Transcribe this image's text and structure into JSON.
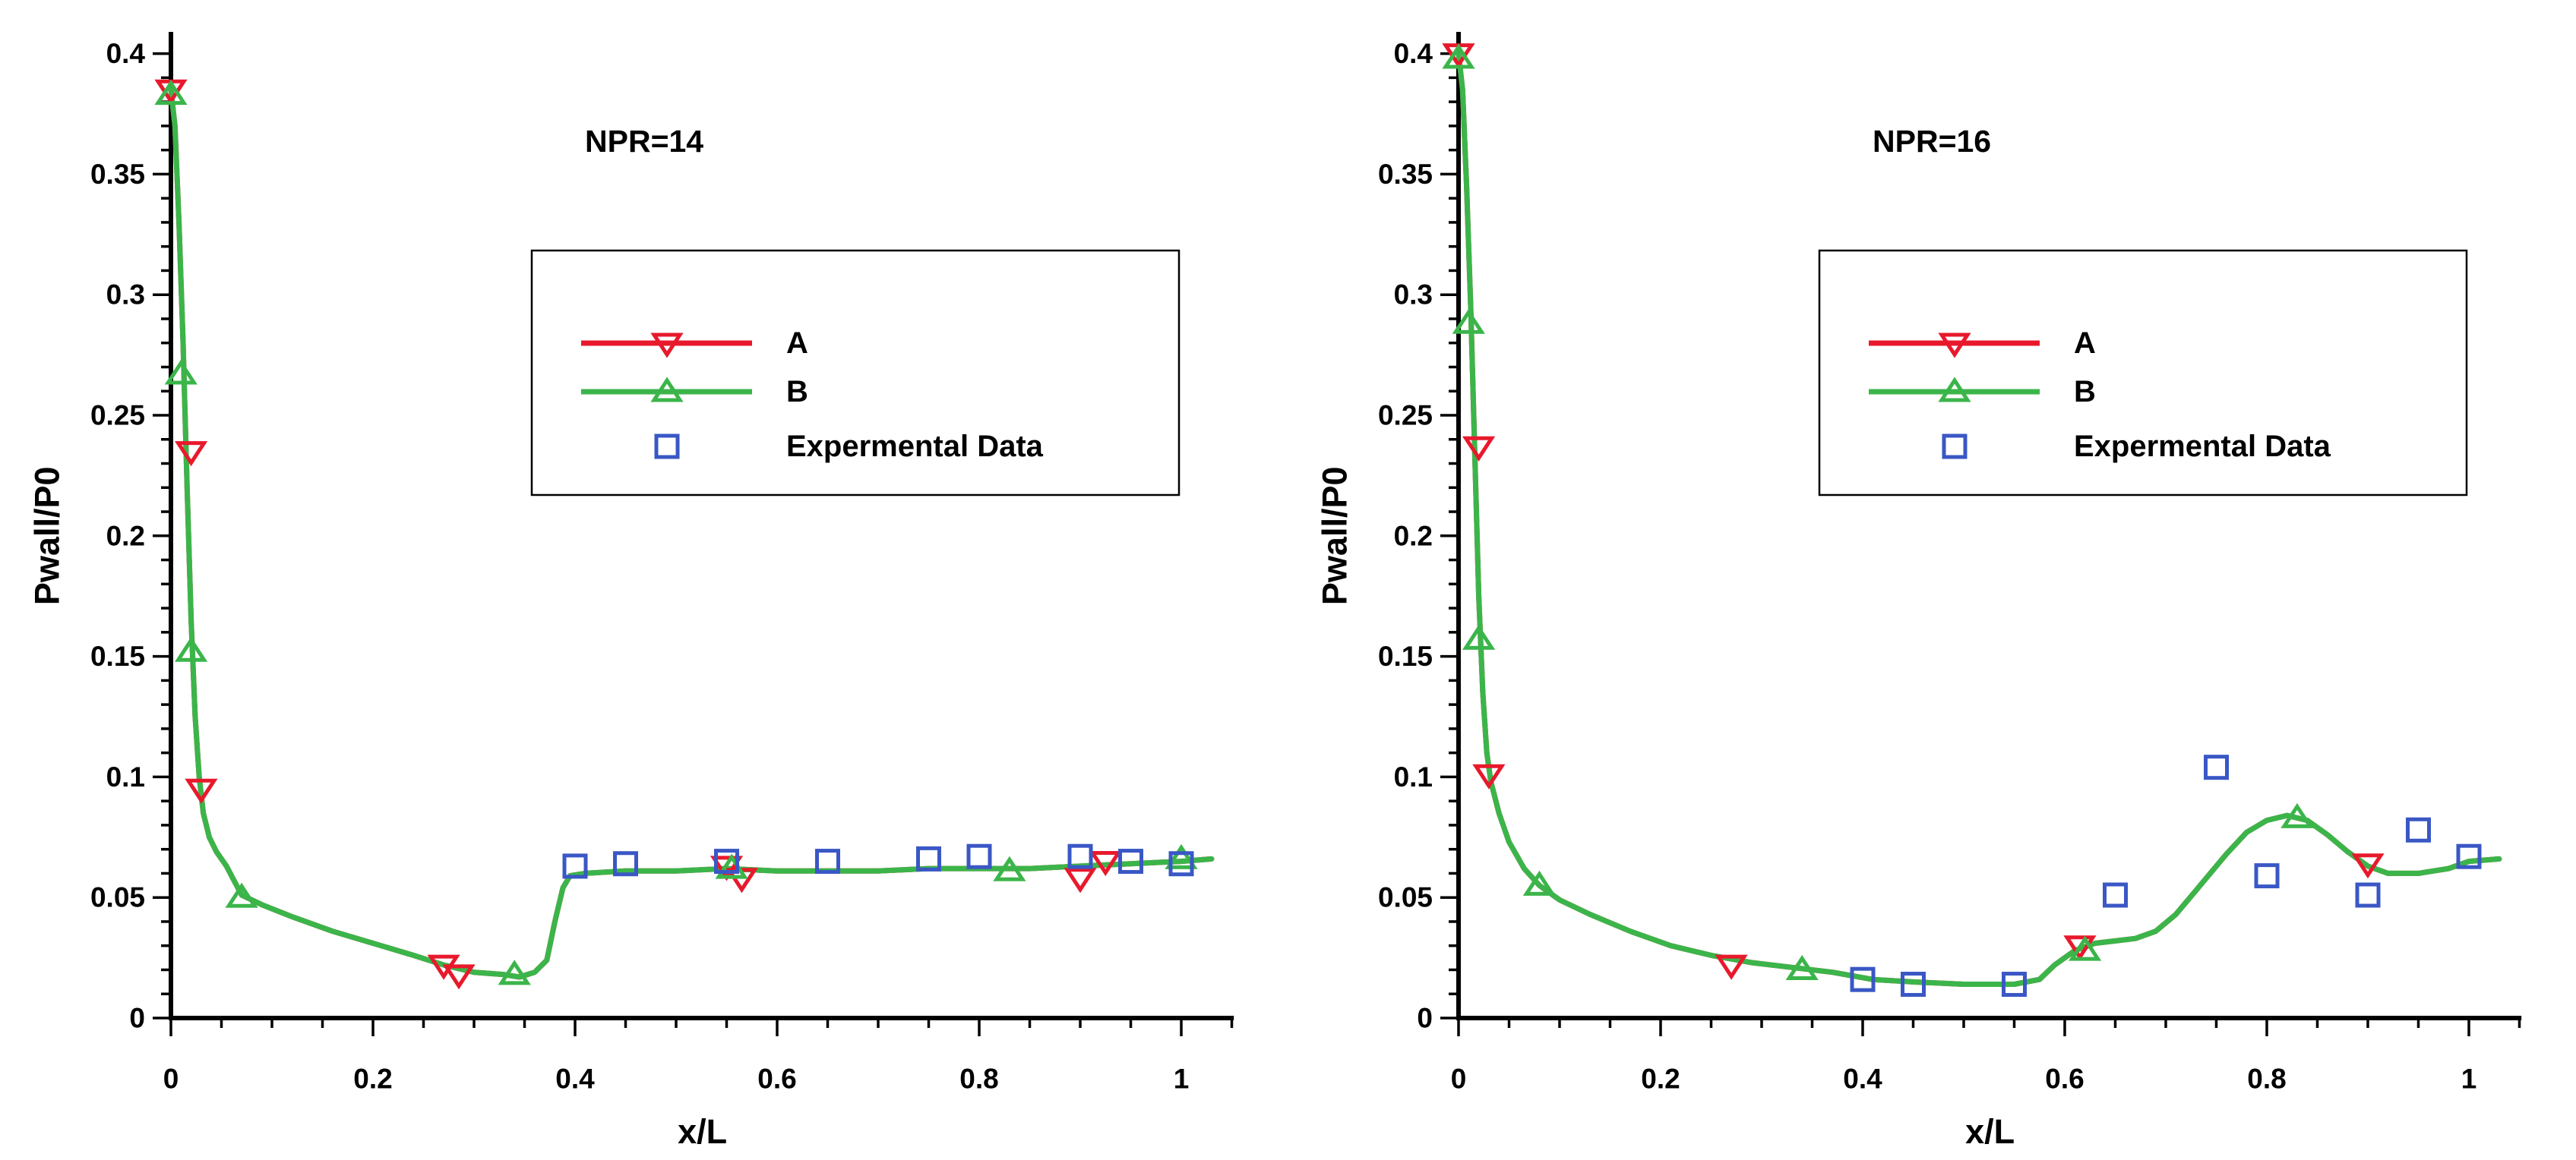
{
  "page": {
    "background": "#ffffff"
  },
  "colors": {
    "axis": "#000000",
    "series_a": "#e8192c",
    "series_b": "#3bb54a",
    "experimental": "#3a57c5"
  },
  "chart_data": [
    {
      "type": "line",
      "title": "NPR=14",
      "xlabel": "x/L",
      "ylabel": "Pwall/P0",
      "xlim": [
        0,
        1.05
      ],
      "ylim": [
        0,
        0.4
      ],
      "grid": false,
      "legend_position": "upper-middle",
      "xticks": {
        "values": [
          0,
          0.2,
          0.4,
          0.6,
          0.8,
          1
        ],
        "labels": [
          "0",
          "0.2",
          "0.4",
          "0.6",
          "0.8",
          "1"
        ]
      },
      "yticks": {
        "values": [
          0,
          0.05,
          0.1,
          0.15,
          0.2,
          0.25,
          0.3,
          0.35,
          0.4
        ],
        "labels": [
          "0",
          "0.05",
          "0.1",
          "0.15",
          "0.2",
          "0.25",
          "0.3",
          "0.35",
          "0.4"
        ]
      },
      "minor_x_step": 0.05,
      "minor_y_step": 0.01,
      "curve": [
        [
          0,
          0.385
        ],
        [
          0.004,
          0.37
        ],
        [
          0.008,
          0.33
        ],
        [
          0.012,
          0.28
        ],
        [
          0.016,
          0.22
        ],
        [
          0.02,
          0.165
        ],
        [
          0.024,
          0.125
        ],
        [
          0.028,
          0.1
        ],
        [
          0.032,
          0.085
        ],
        [
          0.038,
          0.075
        ],
        [
          0.045,
          0.069
        ],
        [
          0.055,
          0.063
        ],
        [
          0.07,
          0.051
        ],
        [
          0.09,
          0.047
        ],
        [
          0.12,
          0.042
        ],
        [
          0.16,
          0.036
        ],
        [
          0.2,
          0.031
        ],
        [
          0.24,
          0.026
        ],
        [
          0.27,
          0.022
        ],
        [
          0.3,
          0.019
        ],
        [
          0.33,
          0.018
        ],
        [
          0.345,
          0.017
        ],
        [
          0.36,
          0.019
        ],
        [
          0.372,
          0.024
        ],
        [
          0.38,
          0.04
        ],
        [
          0.388,
          0.054
        ],
        [
          0.395,
          0.059
        ],
        [
          0.41,
          0.06
        ],
        [
          0.45,
          0.061
        ],
        [
          0.5,
          0.061
        ],
        [
          0.55,
          0.062
        ],
        [
          0.6,
          0.061
        ],
        [
          0.65,
          0.061
        ],
        [
          0.7,
          0.061
        ],
        [
          0.75,
          0.062
        ],
        [
          0.8,
          0.062
        ],
        [
          0.85,
          0.062
        ],
        [
          0.9,
          0.063
        ],
        [
          0.95,
          0.064
        ],
        [
          1.0,
          0.065
        ],
        [
          1.03,
          0.066
        ]
      ],
      "series": [
        {
          "name": "A",
          "color": "#e8192c",
          "marker": "triangle-down",
          "line": true,
          "marker_points": [
            [
              0,
              0.385
            ],
            [
              0.02,
              0.235
            ],
            [
              0.03,
              0.095
            ],
            [
              0.27,
              0.022
            ],
            [
              0.285,
              0.018
            ],
            [
              0.55,
              0.063
            ],
            [
              0.565,
              0.058
            ],
            [
              0.9,
              0.058
            ],
            [
              0.925,
              0.065
            ]
          ]
        },
        {
          "name": "B",
          "color": "#3bb54a",
          "marker": "triangle-up",
          "line": true,
          "marker_points": [
            [
              0,
              0.383
            ],
            [
              0.01,
              0.267
            ],
            [
              0.02,
              0.152
            ],
            [
              0.07,
              0.05
            ],
            [
              0.34,
              0.018
            ],
            [
              0.555,
              0.062
            ],
            [
              0.83,
              0.061
            ],
            [
              1.0,
              0.066
            ]
          ]
        },
        {
          "name": "Expermental Data",
          "color": "#3a57c5",
          "marker": "square",
          "line": false,
          "marker_points": [
            [
              0.4,
              0.063
            ],
            [
              0.45,
              0.064
            ],
            [
              0.55,
              0.065
            ],
            [
              0.65,
              0.065
            ],
            [
              0.75,
              0.066
            ],
            [
              0.8,
              0.067
            ],
            [
              0.9,
              0.067
            ],
            [
              0.95,
              0.065
            ],
            [
              1.0,
              0.064
            ]
          ]
        }
      ]
    },
    {
      "type": "line",
      "title": "NPR=16",
      "xlabel": "x/L",
      "ylabel": "Pwall/P0",
      "xlim": [
        0,
        1.05
      ],
      "ylim": [
        0,
        0.4
      ],
      "grid": false,
      "legend_position": "upper-middle",
      "xticks": {
        "values": [
          0,
          0.2,
          0.4,
          0.6,
          0.8,
          1
        ],
        "labels": [
          "0",
          "0.2",
          "0.4",
          "0.6",
          "0.8",
          "1"
        ]
      },
      "yticks": {
        "values": [
          0,
          0.05,
          0.1,
          0.15,
          0.2,
          0.25,
          0.3,
          0.35,
          0.4
        ],
        "labels": [
          "0",
          "0.05",
          "0.1",
          "0.15",
          "0.2",
          "0.25",
          "0.3",
          "0.35",
          "0.4"
        ]
      },
      "minor_x_step": 0.05,
      "minor_y_step": 0.01,
      "curve": [
        [
          0,
          0.4
        ],
        [
          0.004,
          0.385
        ],
        [
          0.008,
          0.345
        ],
        [
          0.012,
          0.295
        ],
        [
          0.016,
          0.235
        ],
        [
          0.02,
          0.175
        ],
        [
          0.024,
          0.135
        ],
        [
          0.028,
          0.11
        ],
        [
          0.032,
          0.098
        ],
        [
          0.04,
          0.085
        ],
        [
          0.05,
          0.073
        ],
        [
          0.065,
          0.062
        ],
        [
          0.08,
          0.055
        ],
        [
          0.1,
          0.049
        ],
        [
          0.13,
          0.043
        ],
        [
          0.17,
          0.036
        ],
        [
          0.21,
          0.03
        ],
        [
          0.25,
          0.026
        ],
        [
          0.29,
          0.023
        ],
        [
          0.33,
          0.021
        ],
        [
          0.37,
          0.019
        ],
        [
          0.41,
          0.016
        ],
        [
          0.45,
          0.015
        ],
        [
          0.5,
          0.014
        ],
        [
          0.55,
          0.014
        ],
        [
          0.575,
          0.016
        ],
        [
          0.59,
          0.022
        ],
        [
          0.61,
          0.028
        ],
        [
          0.63,
          0.031
        ],
        [
          0.65,
          0.032
        ],
        [
          0.67,
          0.033
        ],
        [
          0.69,
          0.036
        ],
        [
          0.71,
          0.043
        ],
        [
          0.73,
          0.053
        ],
        [
          0.76,
          0.068
        ],
        [
          0.78,
          0.077
        ],
        [
          0.8,
          0.082
        ],
        [
          0.82,
          0.084
        ],
        [
          0.84,
          0.082
        ],
        [
          0.86,
          0.076
        ],
        [
          0.88,
          0.069
        ],
        [
          0.9,
          0.063
        ],
        [
          0.92,
          0.06
        ],
        [
          0.95,
          0.06
        ],
        [
          0.98,
          0.062
        ],
        [
          1.0,
          0.065
        ],
        [
          1.03,
          0.066
        ]
      ],
      "series": [
        {
          "name": "A",
          "color": "#e8192c",
          "marker": "triangle-down",
          "line": true,
          "marker_points": [
            [
              0,
              0.4
            ],
            [
              0.02,
              0.237
            ],
            [
              0.03,
              0.101
            ],
            [
              0.27,
              0.022
            ],
            [
              0.615,
              0.03
            ],
            [
              0.9,
              0.064
            ]
          ]
        },
        {
          "name": "B",
          "color": "#3bb54a",
          "marker": "triangle-up",
          "line": true,
          "marker_points": [
            [
              0,
              0.398
            ],
            [
              0.01,
              0.288
            ],
            [
              0.02,
              0.157
            ],
            [
              0.08,
              0.055
            ],
            [
              0.34,
              0.02
            ],
            [
              0.62,
              0.028
            ],
            [
              0.83,
              0.083
            ]
          ]
        },
        {
          "name": "Expermental Data",
          "color": "#3a57c5",
          "marker": "square",
          "line": false,
          "marker_points": [
            [
              0.4,
              0.016
            ],
            [
              0.45,
              0.014
            ],
            [
              0.55,
              0.014
            ],
            [
              0.65,
              0.051
            ],
            [
              0.75,
              0.104
            ],
            [
              0.8,
              0.059
            ],
            [
              0.9,
              0.051
            ],
            [
              0.95,
              0.078
            ],
            [
              1.0,
              0.067
            ]
          ]
        }
      ]
    }
  ]
}
